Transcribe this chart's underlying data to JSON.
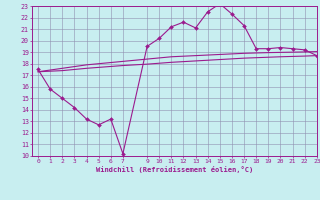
{
  "xlabel": "Windchill (Refroidissement éolien,°C)",
  "background_color": "#c8eef0",
  "grid_color": "#9090b0",
  "line_color": "#9b1b8e",
  "x_data": [
    0,
    1,
    2,
    3,
    4,
    5,
    6,
    7,
    9,
    10,
    11,
    12,
    13,
    14,
    15,
    16,
    17,
    18,
    19,
    20,
    21,
    22,
    23
  ],
  "y_main": [
    17.5,
    15.8,
    15.0,
    14.2,
    13.2,
    12.7,
    13.2,
    10.2,
    19.5,
    20.2,
    21.2,
    21.6,
    21.1,
    22.5,
    23.2,
    22.3,
    21.3,
    19.3,
    19.3,
    19.4,
    19.3,
    19.2,
    18.7
  ],
  "y_linear1": [
    17.3,
    17.45,
    17.6,
    17.75,
    17.9,
    18.0,
    18.1,
    18.2,
    18.4,
    18.5,
    18.6,
    18.65,
    18.7,
    18.75,
    18.8,
    18.85,
    18.9,
    18.93,
    18.96,
    18.98,
    19.0,
    19.02,
    19.05
  ],
  "y_linear2": [
    17.3,
    17.35,
    17.4,
    17.5,
    17.6,
    17.68,
    17.76,
    17.84,
    17.96,
    18.04,
    18.12,
    18.18,
    18.24,
    18.3,
    18.36,
    18.42,
    18.48,
    18.52,
    18.56,
    18.6,
    18.63,
    18.66,
    18.7
  ],
  "ylim": [
    10,
    23
  ],
  "xlim": [
    -0.5,
    23
  ],
  "yticks": [
    10,
    11,
    12,
    13,
    14,
    15,
    16,
    17,
    18,
    19,
    20,
    21,
    22,
    23
  ],
  "xticks": [
    0,
    1,
    2,
    3,
    4,
    5,
    6,
    7,
    9,
    10,
    11,
    12,
    13,
    14,
    15,
    16,
    17,
    18,
    19,
    20,
    21,
    22,
    23
  ],
  "xtick_labels": [
    "0",
    "1",
    "2",
    "3",
    "4",
    "5",
    "6",
    "7",
    "9",
    "10",
    "11",
    "12",
    "13",
    "14",
    "15",
    "16",
    "17",
    "18",
    "19",
    "20",
    "21",
    "22",
    "23"
  ]
}
